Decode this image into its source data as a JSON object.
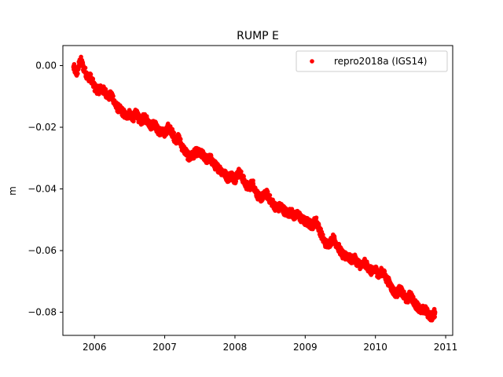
{
  "chart_data": {
    "type": "scatter",
    "title": "RUMP E",
    "xlabel": "",
    "ylabel": "m",
    "xlim": [
      2005.55,
      2011.1
    ],
    "ylim": [
      -0.0875,
      0.0065
    ],
    "x_ticks": [
      2006,
      2007,
      2008,
      2009,
      2010,
      2011
    ],
    "y_ticks": [
      0.0,
      -0.02,
      -0.04,
      -0.06,
      -0.08
    ],
    "y_tick_labels": [
      "0.00",
      "−0.02",
      "−0.04",
      "−0.06",
      "−0.08"
    ],
    "grid": false,
    "legend_position": "top-right",
    "series": [
      {
        "name": "repro2018a (IGS14)",
        "color": "#ff0000",
        "marker": "point",
        "trend": {
          "x": [
            2005.7,
            2010.85
          ],
          "y": [
            -0.0015,
            -0.081
          ]
        },
        "points": [
          [
            2005.7,
            -0.0005
          ],
          [
            2005.75,
            -0.0025
          ],
          [
            2005.8,
            0.002
          ],
          [
            2005.85,
            -0.001
          ],
          [
            2005.9,
            -0.0035
          ],
          [
            2005.95,
            -0.004
          ],
          [
            2006.0,
            -0.007
          ],
          [
            2006.05,
            -0.008
          ],
          [
            2006.1,
            -0.0075
          ],
          [
            2006.15,
            -0.0085
          ],
          [
            2006.2,
            -0.01
          ],
          [
            2006.25,
            -0.0095
          ],
          [
            2006.3,
            -0.013
          ],
          [
            2006.35,
            -0.014
          ],
          [
            2006.4,
            -0.015
          ],
          [
            2006.45,
            -0.0165
          ],
          [
            2006.5,
            -0.0155
          ],
          [
            2006.55,
            -0.017
          ],
          [
            2006.6,
            -0.015
          ],
          [
            2006.65,
            -0.0185
          ],
          [
            2006.7,
            -0.017
          ],
          [
            2006.75,
            -0.0175
          ],
          [
            2006.8,
            -0.0195
          ],
          [
            2006.85,
            -0.0185
          ],
          [
            2006.9,
            -0.021
          ],
          [
            2006.95,
            -0.0215
          ],
          [
            2007.0,
            -0.022
          ],
          [
            2007.05,
            -0.02
          ],
          [
            2007.1,
            -0.0215
          ],
          [
            2007.15,
            -0.024
          ],
          [
            2007.2,
            -0.0235
          ],
          [
            2007.25,
            -0.0265
          ],
          [
            2007.3,
            -0.028
          ],
          [
            2007.35,
            -0.03
          ],
          [
            2007.4,
            -0.029
          ],
          [
            2007.45,
            -0.028
          ],
          [
            2007.5,
            -0.0285
          ],
          [
            2007.55,
            -0.029
          ],
          [
            2007.6,
            -0.0305
          ],
          [
            2007.65,
            -0.03
          ],
          [
            2007.7,
            -0.032
          ],
          [
            2007.75,
            -0.033
          ],
          [
            2007.8,
            -0.034
          ],
          [
            2007.85,
            -0.035
          ],
          [
            2007.9,
            -0.0365
          ],
          [
            2007.95,
            -0.0355
          ],
          [
            2008.0,
            -0.037
          ],
          [
            2008.05,
            -0.0345
          ],
          [
            2008.1,
            -0.036
          ],
          [
            2008.15,
            -0.0385
          ],
          [
            2008.2,
            -0.0395
          ],
          [
            2008.25,
            -0.038
          ],
          [
            2008.3,
            -0.041
          ],
          [
            2008.35,
            -0.043
          ],
          [
            2008.4,
            -0.0425
          ],
          [
            2008.45,
            -0.0415
          ],
          [
            2008.5,
            -0.0435
          ],
          [
            2008.55,
            -0.045
          ],
          [
            2008.6,
            -0.0465
          ],
          [
            2008.65,
            -0.0455
          ],
          [
            2008.7,
            -0.047
          ],
          [
            2008.75,
            -0.048
          ],
          [
            2008.8,
            -0.0475
          ],
          [
            2008.85,
            -0.049
          ],
          [
            2008.9,
            -0.048
          ],
          [
            2008.95,
            -0.05
          ],
          [
            2009.0,
            -0.0505
          ],
          [
            2009.05,
            -0.051
          ],
          [
            2009.1,
            -0.052
          ],
          [
            2009.15,
            -0.05
          ],
          [
            2009.2,
            -0.053
          ],
          [
            2009.25,
            -0.056
          ],
          [
            2009.3,
            -0.058
          ],
          [
            2009.35,
            -0.0575
          ],
          [
            2009.4,
            -0.056
          ],
          [
            2009.45,
            -0.058
          ],
          [
            2009.5,
            -0.06
          ],
          [
            2009.55,
            -0.062
          ],
          [
            2009.6,
            -0.0615
          ],
          [
            2009.65,
            -0.063
          ],
          [
            2009.7,
            -0.0625
          ],
          [
            2009.75,
            -0.064
          ],
          [
            2009.8,
            -0.065
          ],
          [
            2009.85,
            -0.064
          ],
          [
            2009.9,
            -0.0655
          ],
          [
            2009.95,
            -0.067
          ],
          [
            2010.0,
            -0.066
          ],
          [
            2010.05,
            -0.068
          ],
          [
            2010.1,
            -0.0665
          ],
          [
            2010.15,
            -0.069
          ],
          [
            2010.2,
            -0.0705
          ],
          [
            2010.25,
            -0.073
          ],
          [
            2010.3,
            -0.074
          ],
          [
            2010.35,
            -0.0725
          ],
          [
            2010.4,
            -0.0745
          ],
          [
            2010.45,
            -0.076
          ],
          [
            2010.5,
            -0.074
          ],
          [
            2010.55,
            -0.077
          ],
          [
            2010.6,
            -0.078
          ],
          [
            2010.65,
            -0.0795
          ],
          [
            2010.7,
            -0.079
          ],
          [
            2010.75,
            -0.0805
          ],
          [
            2010.8,
            -0.0815
          ],
          [
            2010.85,
            -0.08
          ]
        ]
      }
    ]
  }
}
